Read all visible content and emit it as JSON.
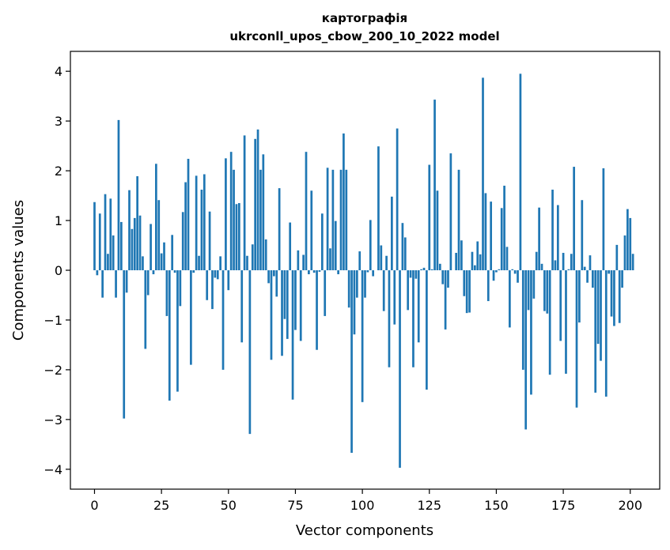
{
  "chart_data": {
    "type": "bar",
    "title": "картографія",
    "subtitle": "ukrconll_upos_cbow_200_10_2022 model",
    "xlabel": "Vector components",
    "ylabel": "Components values",
    "xlim": [
      -9,
      211
    ],
    "ylim": [
      -4.4,
      4.4
    ],
    "xticks": [
      0,
      25,
      50,
      75,
      100,
      125,
      150,
      175,
      200
    ],
    "yticks": [
      -4,
      -3,
      -2,
      -1,
      0,
      1,
      2,
      3,
      4
    ],
    "grid": false,
    "bar_color": "#1f77b4",
    "values": [
      1.37,
      -0.1,
      1.14,
      -0.55,
      1.53,
      0.33,
      1.44,
      0.7,
      -0.55,
      3.02,
      0.97,
      -2.98,
      -0.45,
      1.61,
      0.83,
      1.05,
      1.89,
      1.1,
      0.28,
      -1.58,
      -0.5,
      0.93,
      -0.08,
      2.14,
      1.41,
      0.34,
      0.56,
      -0.92,
      -2.62,
      0.71,
      -0.05,
      -2.44,
      -0.72,
      1.17,
      1.77,
      2.24,
      -1.9,
      -0.05,
      1.9,
      0.29,
      1.62,
      1.93,
      -0.6,
      1.18,
      -0.78,
      -0.15,
      -0.18,
      0.28,
      -2.0,
      2.25,
      -0.4,
      2.38,
      2.02,
      1.33,
      1.35,
      -1.45,
      2.71,
      0.29,
      -3.29,
      0.52,
      2.64,
      2.83,
      2.02,
      2.33,
      0.62,
      -0.26,
      -1.8,
      -0.12,
      -0.53,
      1.65,
      -1.72,
      -0.98,
      -1.38,
      0.96,
      -2.6,
      -1.2,
      0.4,
      -1.42,
      0.31,
      2.38,
      -0.08,
      1.6,
      -0.05,
      -1.6,
      -0.03,
      1.14,
      -0.92,
      2.06,
      0.44,
      2.02,
      0.99,
      -0.08,
      2.02,
      2.75,
      2.02,
      -0.75,
      -3.67,
      -1.29,
      -0.55,
      0.38,
      -2.65,
      -0.55,
      -0.04,
      1.01,
      -0.12,
      0.0,
      2.49,
      0.5,
      -0.82,
      0.29,
      -1.95,
      1.48,
      -1.09,
      2.85,
      -3.97,
      0.95,
      0.66,
      -0.8,
      -0.15,
      -1.95,
      -0.17,
      -1.45,
      0.02,
      0.05,
      -2.4,
      2.12,
      0.02,
      3.43,
      1.6,
      0.13,
      -0.28,
      -1.19,
      -0.35,
      2.35,
      0.0,
      0.35,
      2.02,
      0.6,
      -0.52,
      -0.86,
      -0.85,
      0.37,
      0.1,
      0.58,
      0.32,
      3.87,
      1.55,
      -0.62,
      1.38,
      -0.21,
      -0.04,
      0.02,
      1.25,
      1.7,
      0.47,
      -1.15,
      0.02,
      -0.07,
      -0.25,
      3.95,
      -2.0,
      -3.2,
      -0.8,
      -2.5,
      -0.57,
      0.37,
      1.26,
      0.13,
      -0.82,
      -0.87,
      -2.1,
      1.62,
      0.2,
      1.31,
      -1.42,
      0.35,
      -2.08,
      0.02,
      0.33,
      2.08,
      -2.76,
      -1.05,
      1.41,
      0.07,
      -0.25,
      0.3,
      -0.35,
      -2.46,
      -1.48,
      -1.82,
      2.05,
      -2.54,
      -0.07,
      -0.93,
      -1.12,
      0.51,
      -1.06,
      -0.35,
      0.7,
      1.23,
      1.05,
      0.33
    ]
  }
}
